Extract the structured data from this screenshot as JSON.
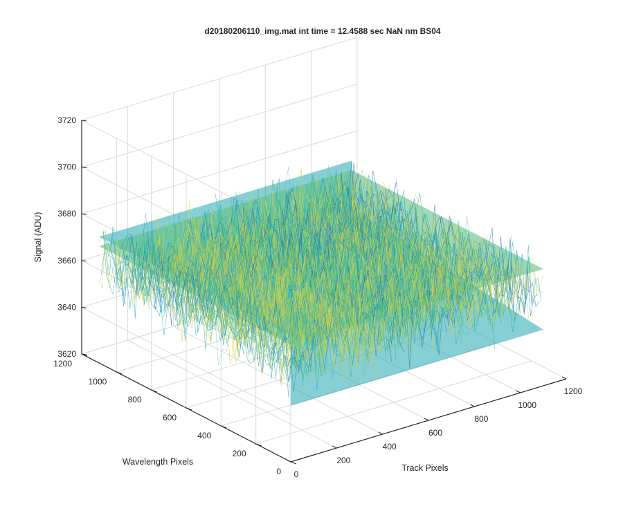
{
  "chart_data": {
    "type": "surface",
    "title": "d20180206110_img.mat int time = 12.4588 sec  NaN nm BS04",
    "xlabel": "Track Pixels",
    "ylabel": "Wavelength Pixels",
    "zlabel": "Signal (ADU)",
    "x_ticks": [
      "0",
      "200",
      "400",
      "600",
      "800",
      "1000",
      "1200"
    ],
    "y_ticks": [
      "0",
      "200",
      "400",
      "600",
      "800",
      "1000",
      "1200"
    ],
    "z_ticks": [
      "3620",
      "3640",
      "3660",
      "3680",
      "3700",
      "3720"
    ],
    "xlim": [
      0,
      1200
    ],
    "ylim": [
      0,
      1200
    ],
    "zlim": [
      3620,
      3720
    ],
    "data_extent": {
      "x": [
        0,
        1100
      ],
      "y": [
        0,
        1100
      ]
    },
    "signal_mean": 3662,
    "signal_range": [
      3630,
      3700
    ],
    "grid": true,
    "colormap": [
      "#1f77b4",
      "#1aa0c8",
      "#21b3a8",
      "#5cc46a",
      "#c8d24a",
      "#e6cf3c"
    ]
  }
}
